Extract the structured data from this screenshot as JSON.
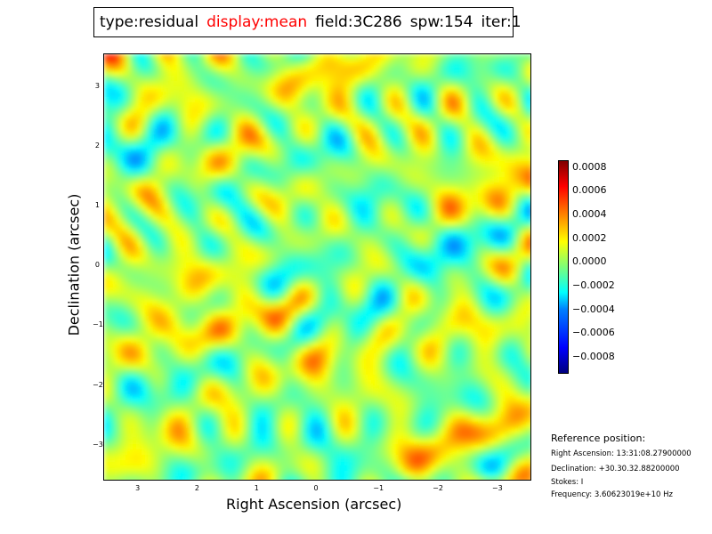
{
  "title": {
    "type": "type:residual",
    "display": "display:mean",
    "field": "field:3C286",
    "spw": "spw:154",
    "iter": "iter:1"
  },
  "colors": {
    "highlight": "#ff0000",
    "border": "#000000"
  },
  "chart_data": {
    "type": "heatmap",
    "colormap": "jet",
    "xlabel": "Right Ascension (arcsec)",
    "ylabel": "Declination (arcsec)",
    "xlim": [
      3.6,
      -3.6
    ],
    "ylim": [
      -3.6,
      3.55
    ],
    "x_ticks": [
      "3",
      "2",
      "1",
      "0",
      "−1",
      "−2",
      "−3"
    ],
    "x_tick_values": [
      3,
      2,
      1,
      0,
      -1,
      -2,
      -3
    ],
    "y_ticks": [
      "3",
      "2",
      "1",
      "0",
      "−1",
      "−2",
      "−3"
    ],
    "y_tick_values": [
      3,
      2,
      1,
      0,
      -1,
      -2,
      -3
    ],
    "colorbar": {
      "range": [
        -0.00095,
        0.00085
      ],
      "ticks": [
        "0.0008",
        "0.0006",
        "0.0004",
        "0.0002",
        "0.0000",
        "−0.0002",
        "−0.0004",
        "−0.0006",
        "−0.0008"
      ],
      "tick_values": [
        0.0008,
        0.0006,
        0.0004,
        0.0002,
        0.0,
        -0.0002,
        -0.0004,
        -0.0006,
        -0.0008
      ]
    }
  },
  "reference": {
    "heading": "Reference position:",
    "lines": [
      "Right Ascension: 13:31:08.27900000",
      "Declination: +30.30.32.88200000",
      "Stokes: I",
      "Frequency: 3.60623019e+10 Hz"
    ]
  }
}
